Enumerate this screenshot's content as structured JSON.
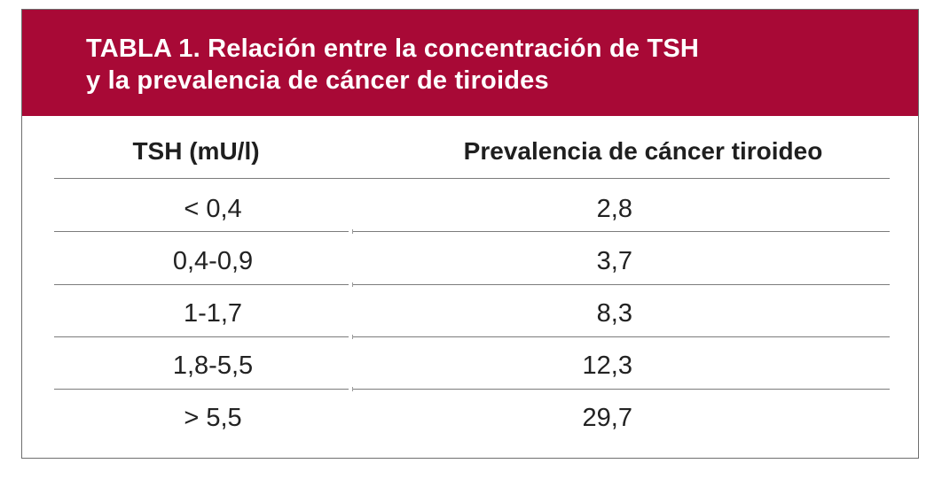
{
  "title": {
    "line1": "TABLA 1. Relación entre la concentración de TSH",
    "line2": "y la prevalencia de cáncer de tiroides"
  },
  "columns": {
    "tsh": "TSH (mU/l)",
    "prevalence": "Prevalencia de cáncer tiroideo"
  },
  "rows": [
    {
      "tsh": "< 0,4",
      "prevalence": "2,8"
    },
    {
      "tsh": "0,4-0,9",
      "prevalence": "3,7"
    },
    {
      "tsh": "1-1,7",
      "prevalence": "8,3"
    },
    {
      "tsh": "1,8-5,5",
      "prevalence": "12,3"
    },
    {
      "tsh": "> 5,5",
      "prevalence": "29,7"
    }
  ],
  "colors": {
    "title_band": "#a80936",
    "title_text": "#ffffff",
    "body_text": "#1f1f1f",
    "rules": "#7b7b7b"
  }
}
